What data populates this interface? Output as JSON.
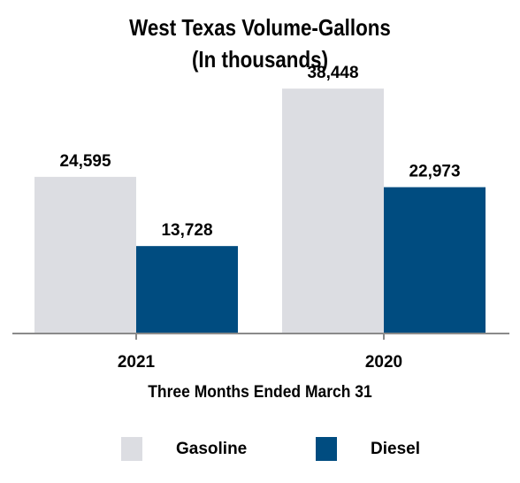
{
  "chart_data": {
    "type": "bar",
    "title": "West Texas Volume-Gallons",
    "subtitle": "(In thousands)",
    "xlabel": "Three Months Ended March 31",
    "categories": [
      "2021",
      "2020"
    ],
    "series": [
      {
        "name": "Gasoline",
        "values": [
          24595,
          38448
        ],
        "labels": [
          "24,595",
          "38,448"
        ],
        "color": "#dcdde2"
      },
      {
        "name": "Diesel",
        "values": [
          13728,
          22973
        ],
        "labels": [
          "13,728",
          "22,973"
        ],
        "color": "#004c80"
      }
    ],
    "ylim": [
      0,
      40000
    ],
    "grid": false,
    "legend": "bottom"
  }
}
